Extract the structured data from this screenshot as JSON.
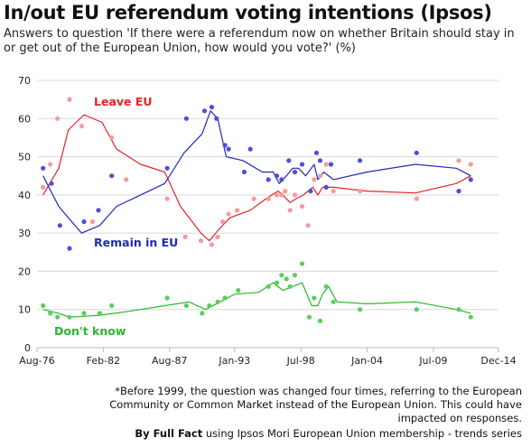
{
  "title": "In/out EU referendum voting intentions (Ipsos)",
  "subtitle": "Answers to question 'If there were a referendum now on whether Britain should stay in or get out of the European Union, how would you vote?' (%)",
  "footnote": "*Before  1999, the question was changed four times, referring to the European Community or Common Market instead of the European Union. This could have impacted on responses.",
  "credit": {
    "prefix": "By Full Fact",
    "rest": " using Ipsos Mori European Union membership - trends series"
  },
  "chart_data": {
    "type": "scatter",
    "x_unit": "year",
    "xlim": [
      1976.6,
      2014.9
    ],
    "ylim": [
      0,
      70
    ],
    "y_ticks": [
      0,
      10,
      20,
      30,
      40,
      50,
      60,
      70
    ],
    "x_ticks": [
      {
        "label": "Aug-76",
        "x": 1976.6
      },
      {
        "label": "Feb-82",
        "x": 1982.1
      },
      {
        "label": "Aug-87",
        "x": 1987.6
      },
      {
        "label": "Jan-93",
        "x": 1993.0
      },
      {
        "label": "Jul-98",
        "x": 1998.5
      },
      {
        "label": "Jan-04",
        "x": 2004.0
      },
      {
        "label": "Jul-09",
        "x": 2009.5
      },
      {
        "label": "Dec-14",
        "x": 2014.9
      }
    ],
    "grid": true,
    "series": [
      {
        "name": "Leave EU",
        "color": "#e8202a",
        "point_color": "#f49b9b",
        "points": [
          [
            1977.1,
            42
          ],
          [
            1977.7,
            48
          ],
          [
            1978.3,
            60
          ],
          [
            1979.3,
            65
          ],
          [
            1980.3,
            58
          ],
          [
            1981.2,
            33
          ],
          [
            1982.8,
            55
          ],
          [
            1984.0,
            44
          ],
          [
            1987.4,
            39
          ],
          [
            1988.9,
            29
          ],
          [
            1990.2,
            28
          ],
          [
            1991.1,
            27
          ],
          [
            1991.6,
            29
          ],
          [
            1992.0,
            33
          ],
          [
            1992.5,
            35
          ],
          [
            1993.2,
            36
          ],
          [
            1994.6,
            39
          ],
          [
            1995.8,
            39
          ],
          [
            1996.5,
            40
          ],
          [
            1996.9,
            40
          ],
          [
            1997.2,
            41
          ],
          [
            1997.6,
            36
          ],
          [
            1998.0,
            40
          ],
          [
            1998.6,
            37
          ],
          [
            1999.1,
            32
          ],
          [
            1999.6,
            44
          ],
          [
            2000.1,
            45
          ],
          [
            2000.6,
            48
          ],
          [
            2001.2,
            41
          ],
          [
            2003.4,
            41
          ],
          [
            2008.1,
            39
          ],
          [
            2011.6,
            49
          ],
          [
            2012.6,
            48
          ]
        ],
        "trend": [
          [
            1977.1,
            40
          ],
          [
            1978.4,
            47
          ],
          [
            1979.2,
            57
          ],
          [
            1980.5,
            61
          ],
          [
            1982.0,
            59
          ],
          [
            1983.2,
            52
          ],
          [
            1985.2,
            48
          ],
          [
            1987.2,
            46
          ],
          [
            1988.5,
            37
          ],
          [
            1990.2,
            30
          ],
          [
            1990.9,
            28
          ],
          [
            1991.7,
            31
          ],
          [
            1992.6,
            34
          ],
          [
            1994.3,
            36
          ],
          [
            1995.6,
            39
          ],
          [
            1996.6,
            41
          ],
          [
            1997.0,
            40
          ],
          [
            1997.6,
            38
          ],
          [
            1998.1,
            39
          ],
          [
            1998.7,
            40
          ],
          [
            1999.5,
            42
          ],
          [
            1999.9,
            40
          ],
          [
            2000.3,
            42
          ],
          [
            2001.2,
            42
          ],
          [
            2004.0,
            41
          ],
          [
            2008.0,
            40.5
          ],
          [
            2011.4,
            43
          ],
          [
            2012.6,
            45
          ]
        ]
      },
      {
        "name": "Remain in EU",
        "color": "#1e2ab8",
        "point_color": "#4c4ee0",
        "points": [
          [
            1977.1,
            47
          ],
          [
            1977.8,
            43
          ],
          [
            1978.5,
            32
          ],
          [
            1979.3,
            26
          ],
          [
            1980.5,
            33
          ],
          [
            1981.7,
            36
          ],
          [
            1982.8,
            45
          ],
          [
            1987.4,
            47
          ],
          [
            1989.0,
            60
          ],
          [
            1990.5,
            62
          ],
          [
            1991.1,
            63
          ],
          [
            1991.5,
            60
          ],
          [
            1992.2,
            53
          ],
          [
            1992.5,
            52
          ],
          [
            1993.8,
            46
          ],
          [
            1994.3,
            52
          ],
          [
            1995.8,
            44
          ],
          [
            1996.5,
            45
          ],
          [
            1996.9,
            44
          ],
          [
            1997.5,
            49
          ],
          [
            1998.0,
            46
          ],
          [
            1998.6,
            48
          ],
          [
            1999.3,
            41
          ],
          [
            1999.8,
            51
          ],
          [
            2000.1,
            49
          ],
          [
            2000.6,
            42
          ],
          [
            2001.0,
            48
          ],
          [
            2003.4,
            49
          ],
          [
            2008.1,
            51
          ],
          [
            2011.6,
            41
          ],
          [
            2012.6,
            44
          ]
        ],
        "trend": [
          [
            1977.1,
            45
          ],
          [
            1978.4,
            37
          ],
          [
            1979.2,
            34
          ],
          [
            1980.3,
            30
          ],
          [
            1981.8,
            32
          ],
          [
            1983.2,
            37
          ],
          [
            1985.2,
            40
          ],
          [
            1987.2,
            43
          ],
          [
            1988.8,
            51
          ],
          [
            1990.3,
            56
          ],
          [
            1991.0,
            62
          ],
          [
            1991.6,
            60
          ],
          [
            1992.3,
            50
          ],
          [
            1993.7,
            49
          ],
          [
            1995.3,
            46
          ],
          [
            1996.2,
            46
          ],
          [
            1996.7,
            43
          ],
          [
            1997.3,
            45
          ],
          [
            1997.8,
            47
          ],
          [
            1998.3,
            47
          ],
          [
            1998.9,
            45
          ],
          [
            1999.6,
            48
          ],
          [
            1999.9,
            44
          ],
          [
            2000.4,
            46
          ],
          [
            2001.2,
            44
          ],
          [
            2004.0,
            46
          ],
          [
            2008.0,
            48
          ],
          [
            2011.4,
            47
          ],
          [
            2012.6,
            45
          ]
        ]
      },
      {
        "name": "Don't know",
        "color": "#2cb52c",
        "point_color": "#59cf59",
        "points": [
          [
            1977.1,
            11
          ],
          [
            1977.7,
            9
          ],
          [
            1978.3,
            8
          ],
          [
            1979.3,
            8
          ],
          [
            1980.5,
            9
          ],
          [
            1981.8,
            9
          ],
          [
            1982.8,
            11
          ],
          [
            1987.4,
            13
          ],
          [
            1989.0,
            11
          ],
          [
            1990.3,
            9
          ],
          [
            1990.9,
            11
          ],
          [
            1991.6,
            12
          ],
          [
            1992.2,
            13
          ],
          [
            1993.3,
            15
          ],
          [
            1995.8,
            16
          ],
          [
            1996.5,
            17
          ],
          [
            1996.9,
            19
          ],
          [
            1997.3,
            18
          ],
          [
            1997.6,
            16
          ],
          [
            1998.0,
            19
          ],
          [
            1998.6,
            22
          ],
          [
            1999.2,
            8
          ],
          [
            1999.6,
            13
          ],
          [
            2000.1,
            7
          ],
          [
            2000.6,
            16
          ],
          [
            2001.2,
            12
          ],
          [
            2003.4,
            10
          ],
          [
            2008.1,
            10
          ],
          [
            2011.6,
            10
          ],
          [
            2012.6,
            8
          ]
        ],
        "trend": [
          [
            1977.1,
            10
          ],
          [
            1978.4,
            9
          ],
          [
            1979.3,
            8
          ],
          [
            1981.8,
            8.5
          ],
          [
            1984.2,
            9.5
          ],
          [
            1987.2,
            11
          ],
          [
            1989.2,
            12
          ],
          [
            1990.6,
            10
          ],
          [
            1991.8,
            12
          ],
          [
            1993.0,
            14
          ],
          [
            1995.0,
            14.5
          ],
          [
            1996.2,
            17
          ],
          [
            1997.0,
            15
          ],
          [
            1997.8,
            16
          ],
          [
            1998.6,
            17
          ],
          [
            1999.4,
            11
          ],
          [
            1999.9,
            11
          ],
          [
            2000.3,
            14
          ],
          [
            2000.8,
            16
          ],
          [
            2001.5,
            12
          ],
          [
            2004.0,
            11.5
          ],
          [
            2008.0,
            12
          ],
          [
            2011.4,
            10
          ],
          [
            2012.6,
            9
          ]
        ]
      }
    ],
    "annotations": [
      {
        "text": "Leave EU",
        "series": "Leave EU"
      },
      {
        "text": "Remain in EU",
        "series": "Remain in EU"
      },
      {
        "text": "Don't know",
        "series": "Don't know"
      }
    ]
  }
}
